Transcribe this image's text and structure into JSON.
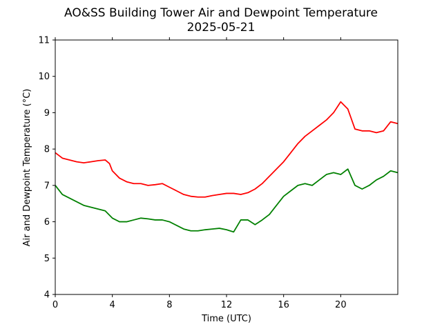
{
  "chart_data": {
    "type": "line",
    "title": "AO&SS Building Tower Air and Dewpoint Temperature",
    "subtitle": "2025-05-21",
    "xlabel": "Time (UTC)",
    "ylabel": "Air and Dewpoint Temperature (°C)",
    "xlim": [
      0,
      24
    ],
    "ylim": [
      4,
      11
    ],
    "xticks": [
      0,
      4,
      8,
      12,
      16,
      20
    ],
    "yticks": [
      4,
      5,
      6,
      7,
      8,
      9,
      10,
      11
    ],
    "grid": false,
    "legend": "none",
    "series": [
      {
        "color": "#ff0000",
        "x": [
          0,
          0.5,
          1,
          1.5,
          2,
          2.5,
          3,
          3.5,
          3.8,
          4,
          4.5,
          5,
          5.5,
          6,
          6.5,
          7,
          7.5,
          8,
          8.5,
          9,
          9.5,
          10,
          10.5,
          11,
          11.5,
          12,
          12.5,
          13,
          13.5,
          14,
          14.5,
          15,
          15.5,
          16,
          16.5,
          17,
          17.5,
          18,
          18.5,
          19,
          19.5,
          20,
          20.5,
          21,
          21.5,
          22,
          22.5,
          23,
          23.5,
          24
        ],
        "y": [
          7.9,
          7.75,
          7.7,
          7.65,
          7.62,
          7.65,
          7.68,
          7.7,
          7.6,
          7.4,
          7.2,
          7.1,
          7.05,
          7.05,
          7.0,
          7.02,
          7.05,
          6.95,
          6.85,
          6.75,
          6.7,
          6.68,
          6.68,
          6.72,
          6.75,
          6.78,
          6.78,
          6.75,
          6.8,
          6.9,
          7.05,
          7.25,
          7.45,
          7.65,
          7.9,
          8.15,
          8.35,
          8.5,
          8.65,
          8.8,
          9.0,
          9.3,
          9.1,
          8.55,
          8.5,
          8.5,
          8.45,
          8.5,
          8.75,
          8.7
        ]
      },
      {
        "color": "#008000",
        "x": [
          0,
          0.5,
          1,
          1.5,
          2,
          2.5,
          3,
          3.5,
          4,
          4.5,
          5,
          5.5,
          6,
          6.5,
          7,
          7.5,
          8,
          8.5,
          9,
          9.5,
          10,
          10.5,
          11,
          11.5,
          12,
          12.5,
          13,
          13.5,
          14,
          14.5,
          15,
          15.5,
          16,
          16.5,
          17,
          17.5,
          18,
          18.5,
          19,
          19.5,
          20,
          20.5,
          21,
          21.5,
          22,
          22.5,
          23,
          23.5,
          24
        ],
        "y": [
          7.0,
          6.75,
          6.65,
          6.55,
          6.45,
          6.4,
          6.35,
          6.3,
          6.1,
          6.0,
          6.0,
          6.05,
          6.1,
          6.08,
          6.05,
          6.05,
          6.0,
          5.9,
          5.8,
          5.75,
          5.75,
          5.78,
          5.8,
          5.82,
          5.78,
          5.72,
          6.05,
          6.05,
          5.92,
          6.05,
          6.2,
          6.45,
          6.7,
          6.85,
          7.0,
          7.05,
          7.0,
          7.15,
          7.3,
          7.35,
          7.3,
          7.45,
          7.0,
          6.9,
          7.0,
          7.15,
          7.25,
          7.4,
          7.35
        ]
      }
    ]
  }
}
